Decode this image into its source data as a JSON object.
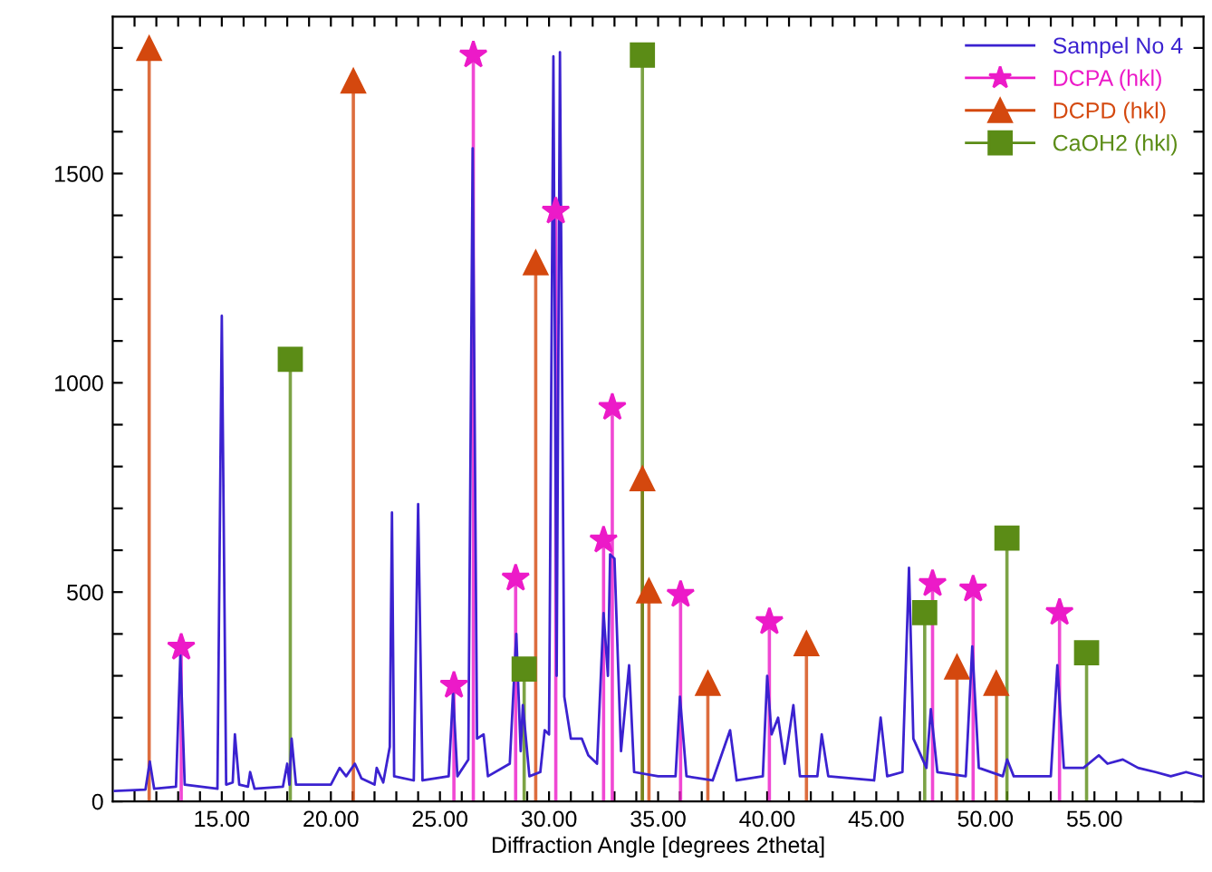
{
  "chart_data": {
    "type": "line",
    "xlabel": "Diffraction Angle [degrees 2theta]",
    "xlim": [
      10,
      60
    ],
    "ylim": [
      0,
      1875
    ],
    "xticks": [
      {
        "value": 11,
        "label": null
      },
      {
        "value": 12,
        "label": null
      },
      {
        "value": 13,
        "label": null
      },
      {
        "value": 14,
        "label": null
      },
      {
        "value": 15,
        "label": "15.00"
      },
      {
        "value": 16,
        "label": null
      },
      {
        "value": 17,
        "label": null
      },
      {
        "value": 18,
        "label": null
      },
      {
        "value": 19,
        "label": null
      },
      {
        "value": 20,
        "label": "20.00"
      },
      {
        "value": 21,
        "label": null
      },
      {
        "value": 22,
        "label": null
      },
      {
        "value": 23,
        "label": null
      },
      {
        "value": 24,
        "label": null
      },
      {
        "value": 25,
        "label": "25.00"
      },
      {
        "value": 26,
        "label": null
      },
      {
        "value": 27,
        "label": null
      },
      {
        "value": 28,
        "label": null
      },
      {
        "value": 29,
        "label": null
      },
      {
        "value": 30,
        "label": "30.00"
      },
      {
        "value": 31,
        "label": null
      },
      {
        "value": 32,
        "label": null
      },
      {
        "value": 33,
        "label": null
      },
      {
        "value": 34,
        "label": null
      },
      {
        "value": 35,
        "label": "35.00"
      },
      {
        "value": 36,
        "label": null
      },
      {
        "value": 37,
        "label": null
      },
      {
        "value": 38,
        "label": null
      },
      {
        "value": 39,
        "label": null
      },
      {
        "value": 40,
        "label": "40.00"
      },
      {
        "value": 41,
        "label": null
      },
      {
        "value": 42,
        "label": null
      },
      {
        "value": 43,
        "label": null
      },
      {
        "value": 44,
        "label": null
      },
      {
        "value": 45,
        "label": "45.00"
      },
      {
        "value": 46,
        "label": null
      },
      {
        "value": 47,
        "label": null
      },
      {
        "value": 48,
        "label": null
      },
      {
        "value": 49,
        "label": null
      },
      {
        "value": 50,
        "label": "50.00"
      },
      {
        "value": 51,
        "label": null
      },
      {
        "value": 52,
        "label": null
      },
      {
        "value": 53,
        "label": null
      },
      {
        "value": 54,
        "label": null
      },
      {
        "value": 55,
        "label": "55.00"
      },
      {
        "value": 56,
        "label": null
      },
      {
        "value": 57,
        "label": null
      },
      {
        "value": 58,
        "label": null
      },
      {
        "value": 59,
        "label": null
      }
    ],
    "yticks": [
      0,
      {
        "value": 100,
        "label": null
      },
      {
        "value": 200,
        "label": null
      },
      {
        "value": 300,
        "label": null
      },
      {
        "value": 400,
        "label": null
      },
      500,
      {
        "value": 600,
        "label": null
      },
      {
        "value": 700,
        "label": null
      },
      {
        "value": 800,
        "label": null
      },
      {
        "value": 900,
        "label": null
      },
      1000,
      {
        "value": 1100,
        "label": null
      },
      {
        "value": 1200,
        "label": null
      },
      {
        "value": 1300,
        "label": null
      },
      {
        "value": 1400,
        "label": null
      },
      1500,
      {
        "value": 1600,
        "label": null
      },
      {
        "value": 1700,
        "label": null
      },
      {
        "value": 1800,
        "label": null
      }
    ],
    "grid": false,
    "legend": "top right",
    "series": [
      {
        "name": "Sampel No 4",
        "color": "#3b22d0",
        "marker": "none",
        "x": [
          10.1,
          11.5,
          11.7,
          11.9,
          12.9,
          13.1,
          13.3,
          14.8,
          15.0,
          15.2,
          15.5,
          15.6,
          15.8,
          16.2,
          16.3,
          16.5,
          17.8,
          18.0,
          18.1,
          18.2,
          18.4,
          20.0,
          20.4,
          20.7,
          21.1,
          21.4,
          22.0,
          22.1,
          22.4,
          22.7,
          22.8,
          22.9,
          23.8,
          24.0,
          24.2,
          25.4,
          25.6,
          25.8,
          26.3,
          26.5,
          26.7,
          27.0,
          27.2,
          28.2,
          28.5,
          28.7,
          28.8,
          29.1,
          29.6,
          29.8,
          30.0,
          30.2,
          30.35,
          30.5,
          30.7,
          31.0,
          31.5,
          31.8,
          32.2,
          32.5,
          32.7,
          32.8,
          33.0,
          33.3,
          33.67,
          33.9,
          35.0,
          35.8,
          36.0,
          36.3,
          37.5,
          38.3,
          38.6,
          39.8,
          40.0,
          40.2,
          40.5,
          40.8,
          41.2,
          41.5,
          42.3,
          42.5,
          42.8,
          44.9,
          45.2,
          45.5,
          46.2,
          46.5,
          46.7,
          47.3,
          47.5,
          47.8,
          49.1,
          49.4,
          49.7,
          50.8,
          51.0,
          51.3,
          53.0,
          53.3,
          53.6,
          54.5,
          55.2,
          55.6,
          56.3,
          57.0,
          57.8,
          58.5,
          59.2,
          59.9
        ],
        "values": [
          25,
          28,
          95,
          30,
          35,
          350,
          40,
          30,
          1160,
          40,
          45,
          160,
          40,
          35,
          70,
          30,
          35,
          90,
          40,
          150,
          40,
          40,
          80,
          60,
          90,
          55,
          40,
          80,
          45,
          130,
          690,
          60,
          50,
          710,
          50,
          60,
          260,
          60,
          100,
          1560,
          150,
          160,
          60,
          90,
          400,
          120,
          230,
          60,
          70,
          170,
          160,
          1780,
          300,
          1790,
          250,
          150,
          150,
          110,
          90,
          450,
          300,
          590,
          580,
          120,
          325,
          70,
          60,
          60,
          250,
          60,
          50,
          170,
          50,
          60,
          300,
          160,
          200,
          90,
          230,
          60,
          60,
          160,
          60,
          50,
          200,
          60,
          70,
          558,
          150,
          80,
          220,
          70,
          60,
          370,
          80,
          60,
          100,
          60,
          60,
          325,
          80,
          80,
          110,
          90,
          100,
          80,
          70,
          60,
          70,
          60
        ]
      },
      {
        "name": "DCPA (hkl)",
        "type": "lollipop",
        "color": "#ec1ac8",
        "marker": "star",
        "x": [
          13.14,
          25.64,
          26.53,
          28.47,
          30.31,
          32.5,
          32.9,
          36.03,
          40.1,
          47.58,
          49.44,
          53.4
        ],
        "values": [
          368,
          277,
          1783,
          533,
          1410,
          624,
          941,
          494,
          429,
          520,
          507,
          451
        ]
      },
      {
        "name": "DCPD (hkl)",
        "type": "lollipop",
        "color": "#d4480e",
        "marker": "triangle",
        "x": [
          11.67,
          21.03,
          29.39,
          34.28,
          34.58,
          37.28,
          41.8,
          48.7,
          50.5
        ],
        "values": [
          1799,
          1721,
          1287,
          771,
          503,
          282,
          377,
          321,
          282
        ]
      },
      {
        "name": "CaOH2 (hkl)",
        "type": "lollipop",
        "color": "#5b8c16",
        "marker": "square",
        "x": [
          18.14,
          28.86,
          34.28,
          47.22,
          50.99,
          54.64
        ],
        "values": [
          1056,
          316,
          1783,
          451,
          629,
          355
        ]
      }
    ]
  }
}
